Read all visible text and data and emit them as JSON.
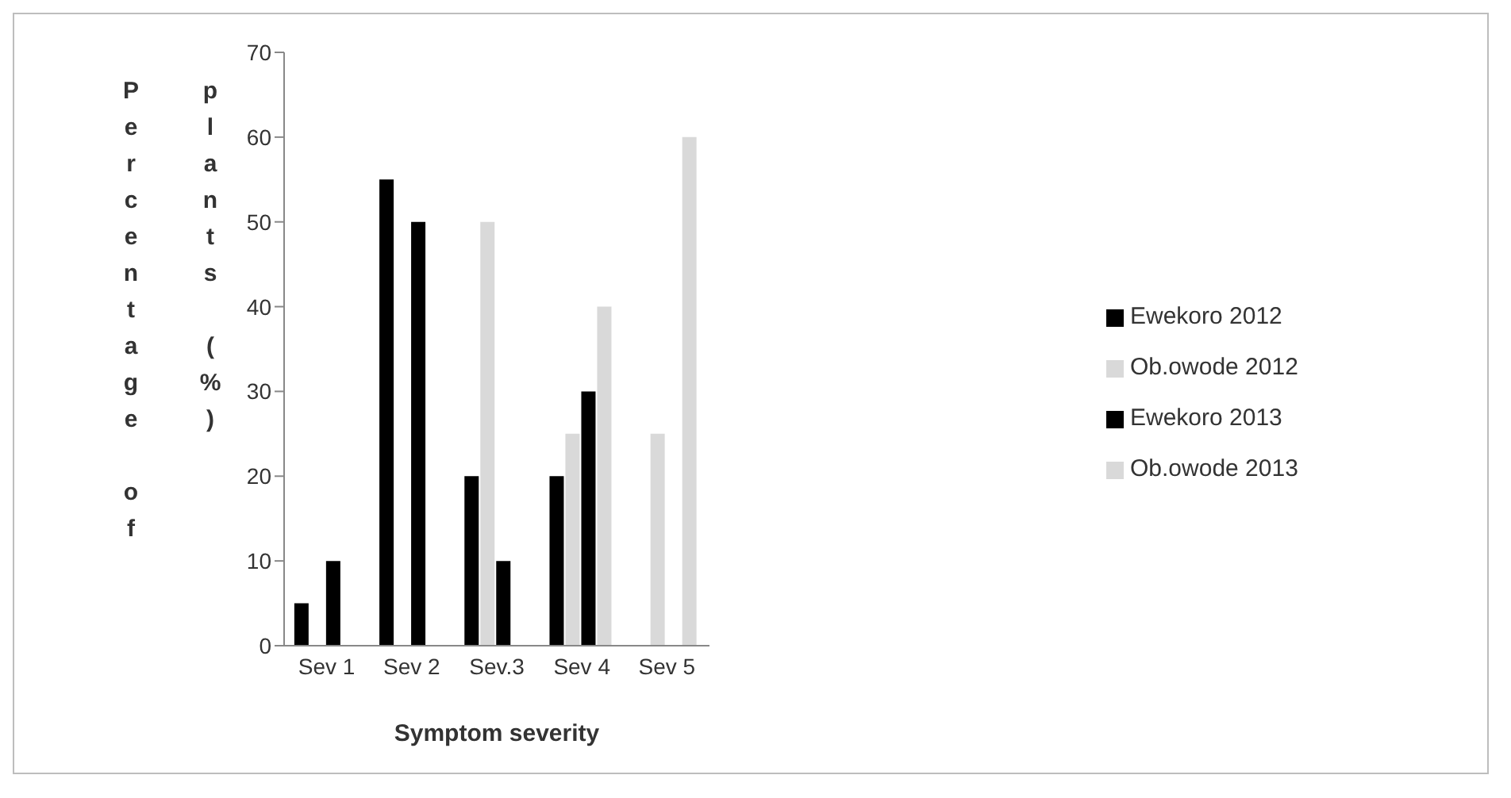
{
  "chart_data": {
    "type": "bar",
    "xlabel": "Symptom severity",
    "ylabel": "Percentage of plants (%)",
    "categories": [
      "Sev 1",
      "Sev 2",
      "Sev.3",
      "Sev 4",
      "Sev 5"
    ],
    "series": [
      {
        "name": "Ewekoro 2012",
        "color": "#000000",
        "values": [
          5,
          55,
          20,
          20,
          0
        ]
      },
      {
        "name": "Ob.owode 2012",
        "color": "#d9d9d9",
        "values": [
          0,
          0,
          50,
          25,
          25
        ]
      },
      {
        "name": "Ewekoro 2013",
        "color": "#000000",
        "values": [
          10,
          50,
          10,
          30,
          0
        ]
      },
      {
        "name": "Ob.owode 2013",
        "color": "#d9d9d9",
        "values": [
          0,
          0,
          0,
          40,
          60
        ]
      }
    ],
    "ylim": [
      0,
      70
    ],
    "yticks": [
      0,
      10,
      20,
      30,
      40,
      50,
      60,
      70
    ],
    "grid": false,
    "legend": "right"
  }
}
